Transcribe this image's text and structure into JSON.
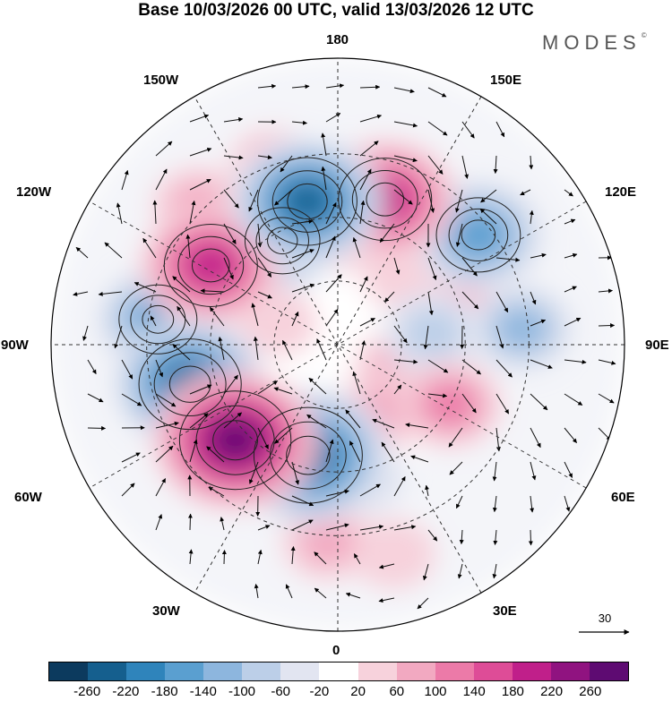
{
  "title": "Base 10/03/2026 00 UTC, valid 13/03/2026 12 UTC",
  "brand": "MODES",
  "brand_mark": "©",
  "longitude_labels": {
    "n180": "180",
    "w150": "150W",
    "e150": "150E",
    "w120": "120W",
    "e120": "120E",
    "w90": "90W",
    "e90": "90E",
    "w60": "60W",
    "e60": "60E",
    "w30": "30W",
    "e30": "30E",
    "zero": "0"
  },
  "reference_vector": {
    "value": "30"
  },
  "colorbar": {
    "colors": [
      "#0c3a5e",
      "#155f8e",
      "#2f84bb",
      "#5a9fd0",
      "#8db6de",
      "#bccfe8",
      "#e2e5f1",
      "#ffffff",
      "#f7d2dc",
      "#f2a9c1",
      "#ec7aa8",
      "#de4c97",
      "#c01f8a",
      "#901380",
      "#5e0b72"
    ],
    "ticks": [
      "-260",
      "-220",
      "-180",
      "-140",
      "-100",
      "-60",
      "-20",
      "20",
      "60",
      "100",
      "140",
      "180",
      "220",
      "260"
    ]
  },
  "anomaly_centers": [
    {
      "lon_deg": -168,
      "colat_deg": 46,
      "value": -220
    },
    {
      "lon_deg": 162,
      "colat_deg": 48,
      "value": 200
    },
    {
      "lon_deg": 128,
      "colat_deg": 56,
      "value": -170
    },
    {
      "lon_deg": -152,
      "colat_deg": 37,
      "value": -140
    },
    {
      "lon_deg": 176,
      "colat_deg": 36,
      "value": 90
    },
    {
      "lon_deg": -122,
      "colat_deg": 47,
      "value": 200
    },
    {
      "lon_deg": -98,
      "colat_deg": 57,
      "value": -150
    },
    {
      "lon_deg": -75,
      "colat_deg": 48,
      "value": -230
    },
    {
      "lon_deg": -47,
      "colat_deg": 44,
      "value": 260
    },
    {
      "lon_deg": -15,
      "colat_deg": 36,
      "value": -250
    },
    {
      "lon_deg": 95,
      "colat_deg": 58,
      "value": -100
    },
    {
      "lon_deg": 97,
      "colat_deg": 30,
      "value": -90
    },
    {
      "lon_deg": 108,
      "colat_deg": 40,
      "value": 80
    },
    {
      "lon_deg": 62,
      "colat_deg": 40,
      "value": 100
    },
    {
      "lon_deg": 35,
      "colat_deg": 25,
      "value": 80
    },
    {
      "lon_deg": 70,
      "colat_deg": 20,
      "value": 60
    },
    {
      "lon_deg": -135,
      "colat_deg": 62,
      "value": 70
    },
    {
      "lon_deg": -160,
      "colat_deg": 60,
      "value": 60
    },
    {
      "lon_deg": 10,
      "colat_deg": 42,
      "value": -60
    },
    {
      "lon_deg": -3,
      "colat_deg": 62,
      "value": 70
    },
    {
      "lon_deg": 15,
      "colat_deg": 68,
      "value": 50
    },
    {
      "lon_deg": 135,
      "colat_deg": 30,
      "value": 50
    },
    {
      "lon_deg": -110,
      "colat_deg": 20,
      "value": 40
    }
  ]
}
